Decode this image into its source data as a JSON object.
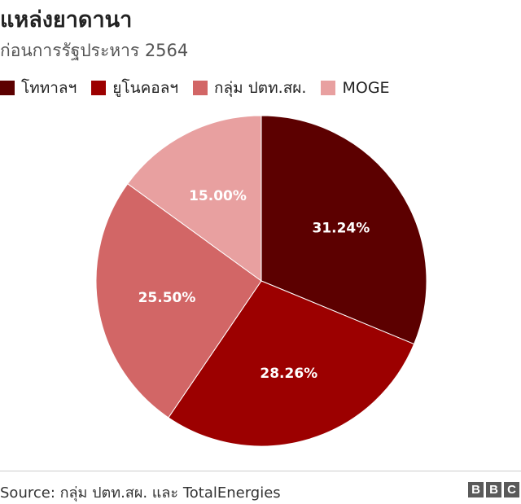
{
  "header": {
    "title": "แหล่งยาดานา",
    "subtitle": "ก่อนการรัฐประหาร 2564"
  },
  "chart_data": {
    "type": "pie",
    "title": "แหล่งยาดานา",
    "subtitle": "ก่อนการรัฐประหาร 2564",
    "legend_position": "top-left",
    "categories": [
      "โททาลฯ",
      "ยูโนคอลฯ",
      "กลุ่ม ปตท.สผ.",
      "MOGE"
    ],
    "values": [
      31.24,
      28.26,
      25.5,
      15.0
    ],
    "data_labels": [
      "31.24%",
      "28.26%",
      "25.50%",
      "15.00%"
    ],
    "colors": [
      "#5c0000",
      "#9c0000",
      "#d26666",
      "#e8a0a0"
    ]
  },
  "footer": {
    "source": "Source: กลุ่ม ปตท.สผ. และ TotalEnergies",
    "brand": [
      "B",
      "B",
      "C"
    ]
  }
}
